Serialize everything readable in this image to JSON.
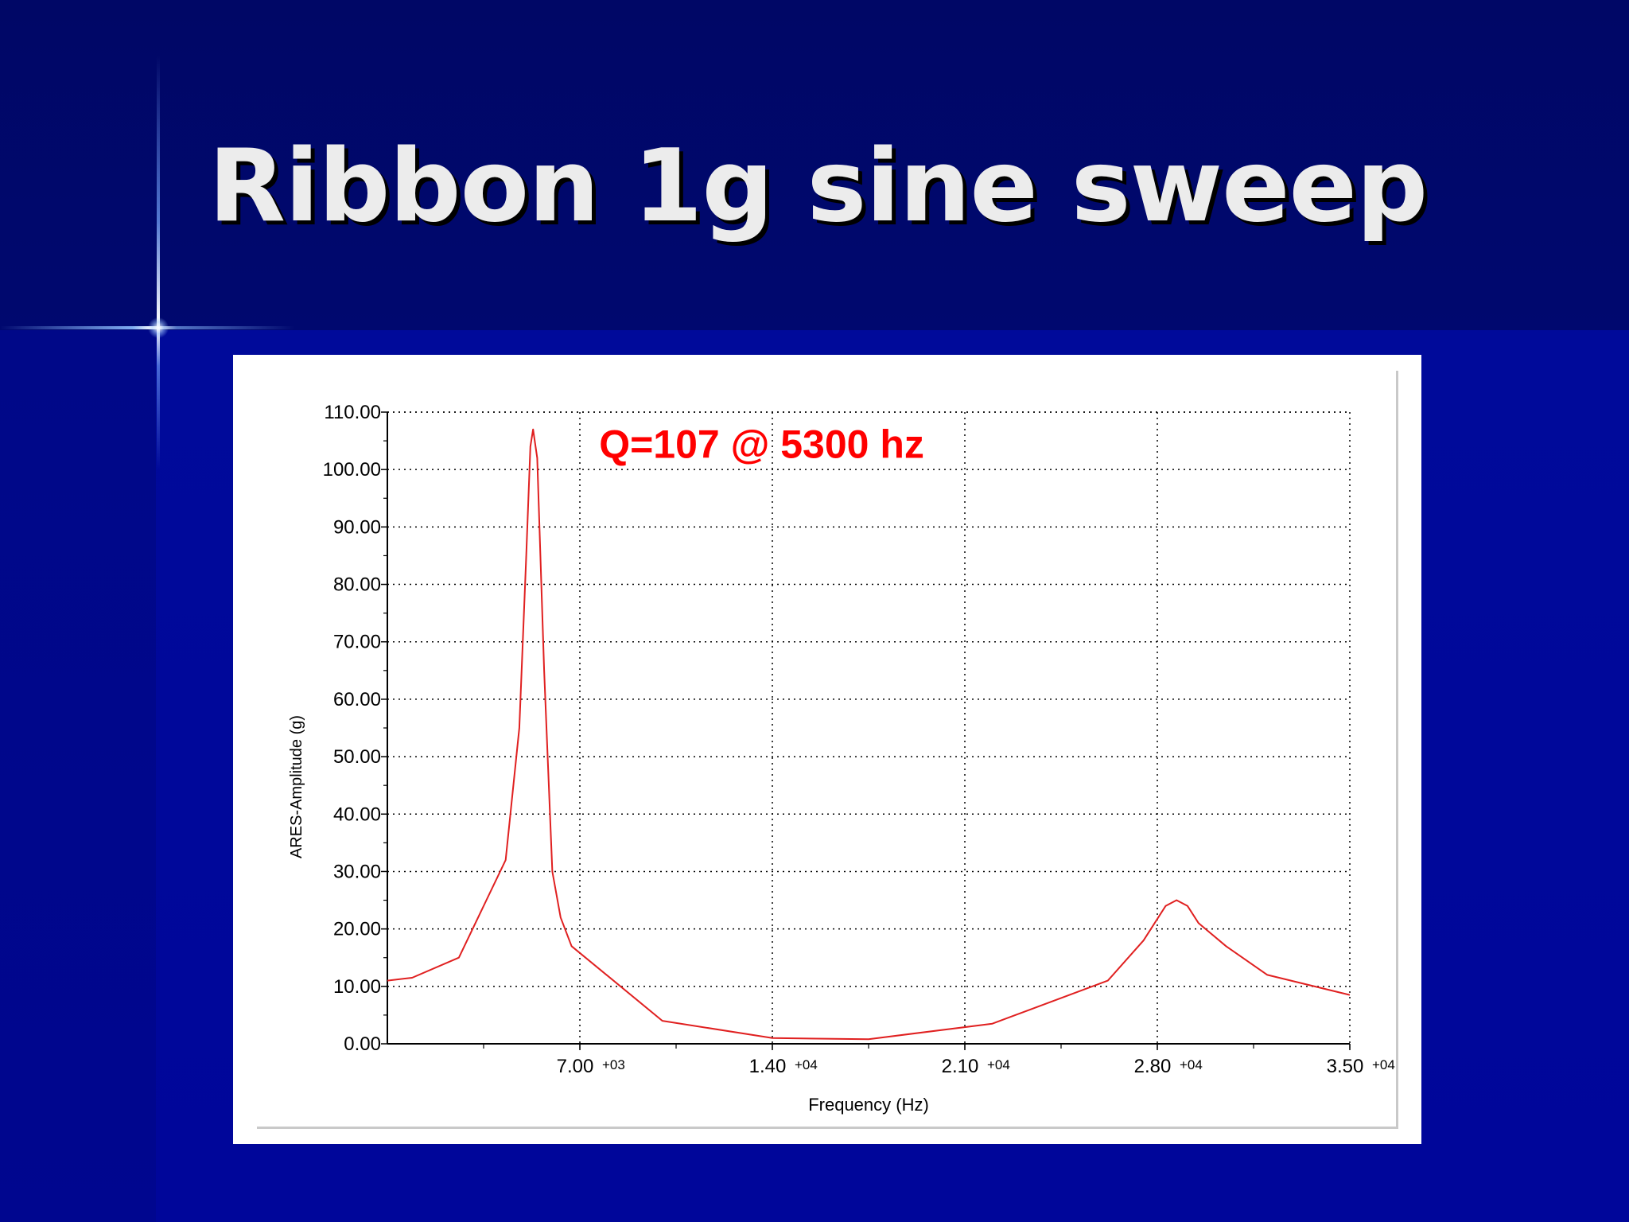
{
  "slide": {
    "title": "Ribbon 1g sine sweep"
  },
  "colors": {
    "background": "#00087a",
    "title_text": "#ececec",
    "series_line": "#e02020",
    "annotation": "#ff0000",
    "grid": "#000000"
  },
  "chart_data": {
    "type": "line",
    "xlabel": "Frequency (Hz)",
    "ylabel": "ARES-Amplitude (g)",
    "xlim": [
      0,
      35000
    ],
    "ylim": [
      0,
      110
    ],
    "grid": true,
    "x_ticks": [
      {
        "value": 7000,
        "mantissa": "7.00",
        "exponent": "+03"
      },
      {
        "value": 14000,
        "mantissa": "1.40",
        "exponent": "+04"
      },
      {
        "value": 21000,
        "mantissa": "2.10",
        "exponent": "+04"
      },
      {
        "value": 28000,
        "mantissa": "2.80",
        "exponent": "+04"
      },
      {
        "value": 35000,
        "mantissa": "3.50",
        "exponent": "+04"
      }
    ],
    "y_ticks": [
      "0.00",
      "10.00",
      "20.00",
      "30.00",
      "40.00",
      "50.00",
      "60.00",
      "70.00",
      "80.00",
      "90.00",
      "100.00",
      "110.00"
    ],
    "annotation": {
      "text": "Q=107 @ 5300 hz",
      "x": 7700,
      "y": 102
    },
    "series": [
      {
        "x": [
          0,
          900,
          2600,
          3600,
          4300,
          4800,
          5050,
          5200,
          5300,
          5450,
          5700,
          6000,
          6300,
          6700,
          10000,
          14000,
          17500,
          22000,
          26200,
          27500,
          28300,
          28700,
          29100,
          29500,
          30500,
          32000,
          35000
        ],
        "y": [
          11,
          11.5,
          15,
          25,
          32,
          55,
          85,
          104,
          107,
          102,
          65,
          30,
          22,
          17,
          4,
          1,
          0.8,
          3.5,
          11,
          18,
          24,
          25,
          24,
          21,
          17,
          12,
          8.5
        ]
      }
    ]
  }
}
